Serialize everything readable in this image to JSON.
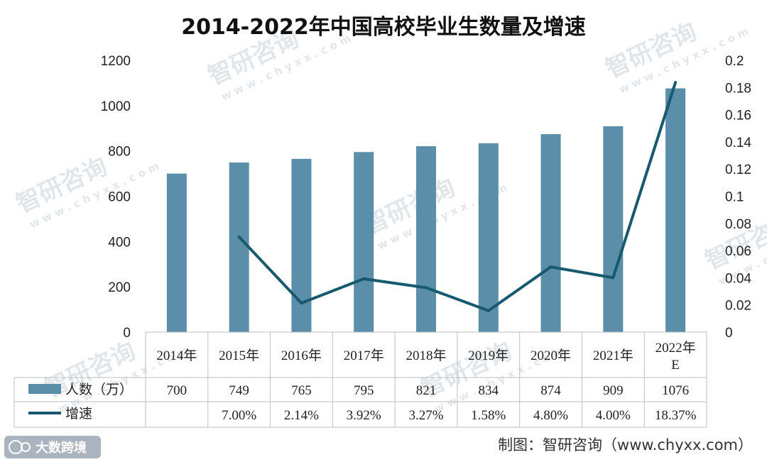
{
  "chart_data": {
    "type": "bar",
    "title": "2014-2022年中国高校毕业生数量及增速",
    "categories": [
      {
        "line1": "2014年",
        "line2": ""
      },
      {
        "line1": "2015年",
        "line2": ""
      },
      {
        "line1": "2016年",
        "line2": ""
      },
      {
        "line1": "2017年",
        "line2": ""
      },
      {
        "line1": "2018年",
        "line2": ""
      },
      {
        "line1": "2019年",
        "line2": ""
      },
      {
        "line1": "2020年",
        "line2": ""
      },
      {
        "line1": "2021年",
        "line2": ""
      },
      {
        "line1": "2022年",
        "line2": "E"
      }
    ],
    "series": [
      {
        "name": "人数（万）",
        "type": "bar",
        "axis": "left",
        "color": "#5b8ea8",
        "values": [
          700,
          749,
          765,
          795,
          821,
          834,
          874,
          909,
          1076
        ],
        "labels": [
          "700",
          "749",
          "765",
          "795",
          "821",
          "834",
          "874",
          "909",
          "1076"
        ]
      },
      {
        "name": "增速",
        "type": "line",
        "axis": "right",
        "color": "#17596f",
        "values": [
          null,
          0.07,
          0.0214,
          0.0392,
          0.0327,
          0.0158,
          0.048,
          0.04,
          0.1837
        ],
        "labels": [
          "",
          "7.00%",
          "2.14%",
          "3.92%",
          "3.27%",
          "1.58%",
          "4.80%",
          "4.00%",
          "18.37%"
        ]
      }
    ],
    "y_left": {
      "min": 0,
      "max": 1200,
      "ticks": [
        "0",
        "200",
        "400",
        "600",
        "800",
        "1000",
        "1200"
      ]
    },
    "y_right": {
      "min": 0,
      "max": 0.2,
      "ticks": [
        "0",
        "0.02",
        "0.04",
        "0.06",
        "0.08",
        "0.1",
        "0.12",
        "0.14",
        "0.16",
        "0.18",
        "0.2"
      ]
    },
    "data_table": true,
    "grid": false,
    "source": "制图：智研咨询（www.chyxx.com）"
  },
  "watermark": {
    "text": "智研咨询",
    "url": "w w w . c h y x x . c o m"
  },
  "brand": {
    "text": "大数跨境"
  }
}
